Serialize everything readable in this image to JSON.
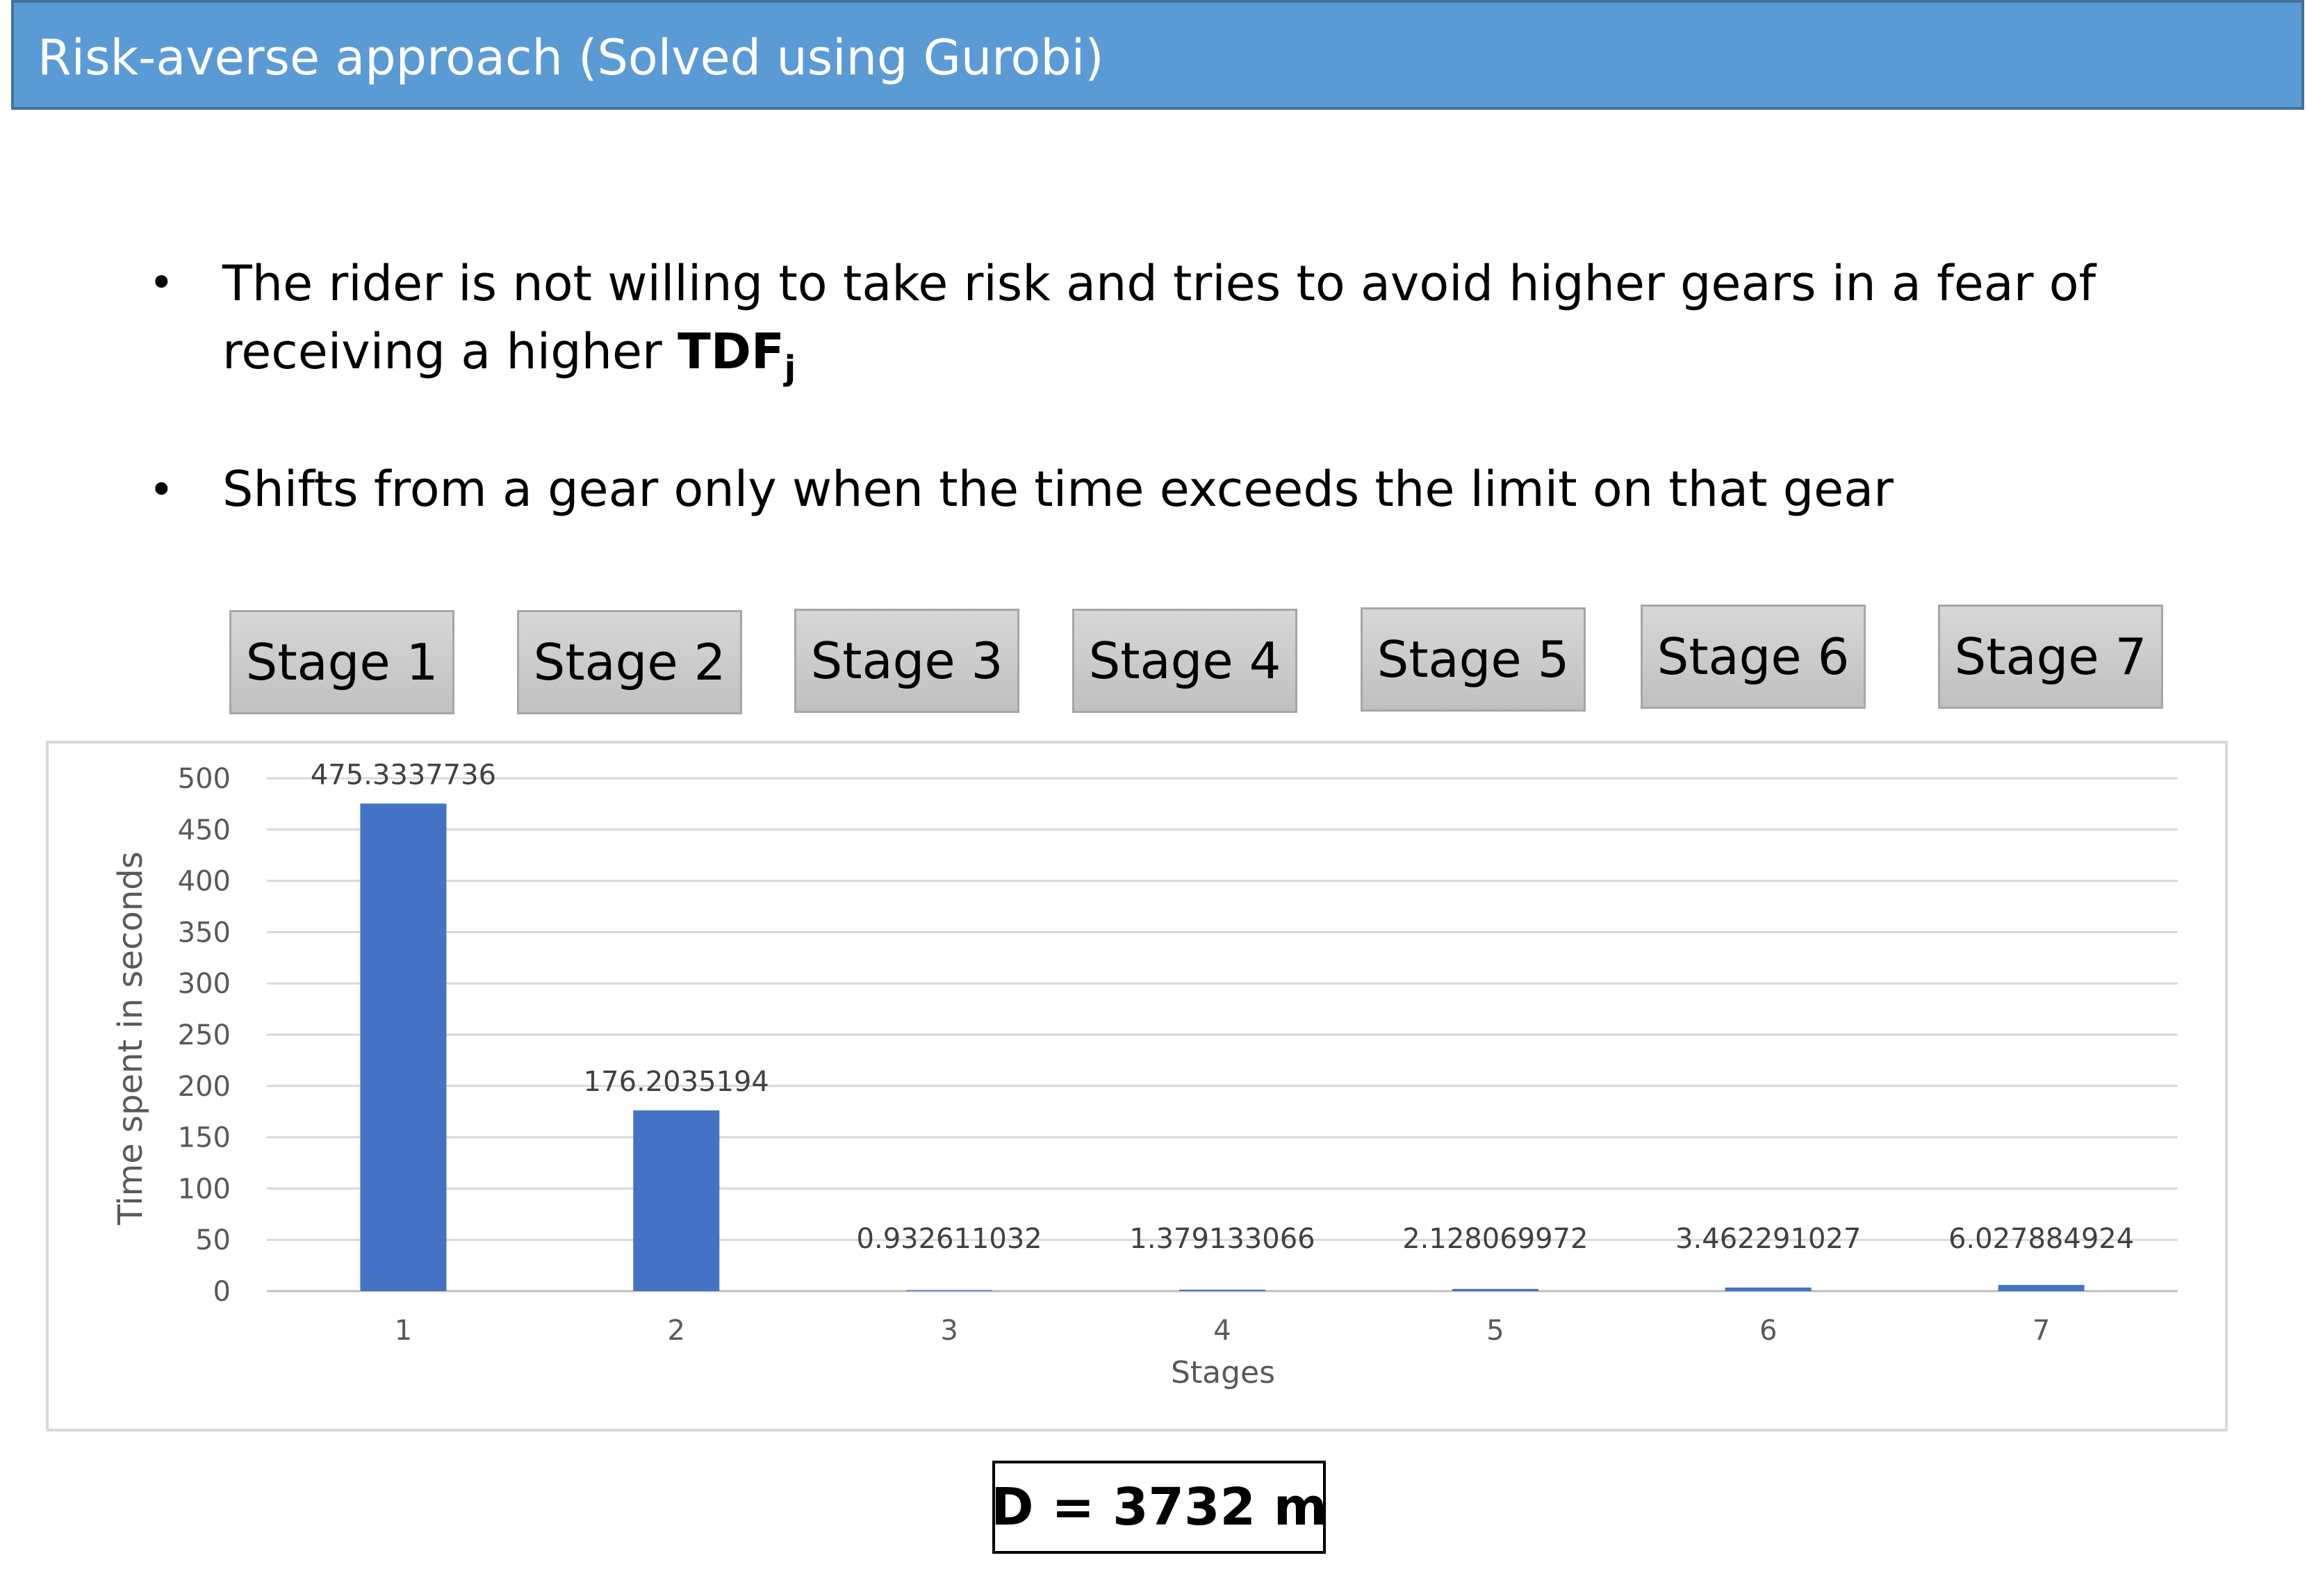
{
  "header": {
    "title": "Risk-averse approach (Solved using Gurobi)"
  },
  "bullets": {
    "b1_line1": "The rider is not willing to take risk and tries to avoid higher gears in a fear of",
    "b1_line2": "receiving a higher",
    "b1_term": "TDF",
    "b1_sub": "j",
    "b2": "Shifts from a gear only when the time exceeds the limit on that gear"
  },
  "stages": [
    "Stage 1",
    "Stage 2",
    "Stage 3",
    "Stage 4",
    "Stage 5",
    "Stage 6",
    "Stage 7"
  ],
  "footer": {
    "distance": "D = 3732 m"
  },
  "colors": {
    "header": "#5b9bd5",
    "bar": "#4472c4"
  },
  "chart_data": {
    "type": "bar",
    "categories": [
      "1",
      "2",
      "3",
      "4",
      "5",
      "6",
      "7"
    ],
    "values": [
      475.3337736,
      176.2035194,
      0.932611032,
      1.379133066,
      2.128069972,
      3.462291027,
      6.027884924
    ],
    "data_labels": [
      "475.3337736",
      "176.2035194",
      "0.932611032",
      "1.379133066",
      "2.128069972",
      "3.462291027",
      "6.027884924"
    ],
    "xlabel": "Stages",
    "ylabel": "Time spent in seconds",
    "ylim": [
      0,
      500
    ],
    "yticks": [
      0,
      50,
      100,
      150,
      200,
      250,
      300,
      350,
      400,
      450,
      500
    ],
    "grid": true,
    "legend": "none"
  }
}
